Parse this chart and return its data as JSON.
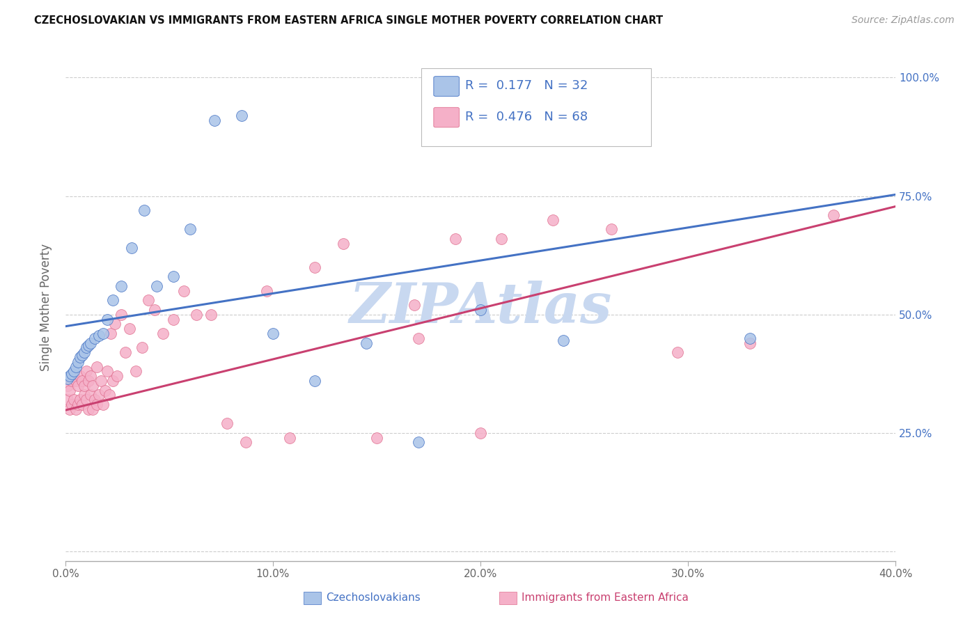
{
  "title": "CZECHOSLOVAKIAN VS IMMIGRANTS FROM EASTERN AFRICA SINGLE MOTHER POVERTY CORRELATION CHART",
  "source": "Source: ZipAtlas.com",
  "ylabel": "Single Mother Poverty",
  "ytick_vals": [
    0.0,
    0.25,
    0.5,
    0.75,
    1.0
  ],
  "ytick_labels": [
    "",
    "25.0%",
    "50.0%",
    "75.0%",
    "100.0%"
  ],
  "xtick_vals": [
    0.0,
    0.1,
    0.2,
    0.3,
    0.4
  ],
  "xtick_labels": [
    "0.0%",
    "10.0%",
    "20.0%",
    "30.0%",
    "40.0%"
  ],
  "line1_color": "#4472C4",
  "line2_color": "#C94070",
  "scatter1_color": "#aac4e8",
  "scatter2_color": "#f5b0c8",
  "scatter1_edge": "#4472C4",
  "scatter2_edge": "#e07090",
  "watermark": "ZIPAtlas",
  "watermark_color": "#c8d8f0",
  "xlim": [
    0.0,
    0.4
  ],
  "ylim": [
    -0.02,
    1.05
  ],
  "legend1_text": "R =  0.177   N = 32",
  "legend2_text": "R =  0.476   N = 68",
  "bottom_label1": "Czechoslovakians",
  "bottom_label2": "Immigrants from Eastern Africa",
  "blue_line_y0": 0.475,
  "blue_line_y1": 0.753,
  "pink_line_y0": 0.298,
  "pink_line_y1": 0.728,
  "blue_x": [
    0.001,
    0.002,
    0.003,
    0.004,
    0.005,
    0.006,
    0.007,
    0.008,
    0.009,
    0.01,
    0.011,
    0.012,
    0.014,
    0.016,
    0.018,
    0.02,
    0.023,
    0.027,
    0.032,
    0.038,
    0.044,
    0.052,
    0.06,
    0.072,
    0.085,
    0.1,
    0.12,
    0.145,
    0.17,
    0.2,
    0.24,
    0.33
  ],
  "blue_y": [
    0.365,
    0.37,
    0.375,
    0.38,
    0.39,
    0.4,
    0.41,
    0.415,
    0.42,
    0.43,
    0.435,
    0.44,
    0.45,
    0.455,
    0.46,
    0.49,
    0.53,
    0.56,
    0.64,
    0.72,
    0.56,
    0.58,
    0.68,
    0.91,
    0.92,
    0.46,
    0.36,
    0.44,
    0.23,
    0.51,
    0.445,
    0.45
  ],
  "pink_x": [
    0.001,
    0.001,
    0.002,
    0.002,
    0.003,
    0.003,
    0.004,
    0.004,
    0.005,
    0.005,
    0.006,
    0.006,
    0.007,
    0.007,
    0.008,
    0.008,
    0.009,
    0.009,
    0.01,
    0.01,
    0.011,
    0.011,
    0.012,
    0.012,
    0.013,
    0.013,
    0.014,
    0.015,
    0.015,
    0.016,
    0.017,
    0.018,
    0.019,
    0.02,
    0.021,
    0.022,
    0.023,
    0.024,
    0.025,
    0.027,
    0.029,
    0.031,
    0.034,
    0.037,
    0.04,
    0.043,
    0.047,
    0.052,
    0.057,
    0.063,
    0.07,
    0.078,
    0.087,
    0.097,
    0.108,
    0.12,
    0.134,
    0.15,
    0.168,
    0.188,
    0.21,
    0.235,
    0.263,
    0.295,
    0.33,
    0.37,
    0.17,
    0.2
  ],
  "pink_y": [
    0.32,
    0.35,
    0.3,
    0.34,
    0.31,
    0.36,
    0.32,
    0.37,
    0.3,
    0.36,
    0.31,
    0.35,
    0.32,
    0.37,
    0.31,
    0.36,
    0.33,
    0.35,
    0.32,
    0.38,
    0.3,
    0.36,
    0.33,
    0.37,
    0.3,
    0.35,
    0.32,
    0.31,
    0.39,
    0.33,
    0.36,
    0.31,
    0.34,
    0.38,
    0.33,
    0.46,
    0.36,
    0.48,
    0.37,
    0.5,
    0.42,
    0.47,
    0.38,
    0.43,
    0.53,
    0.51,
    0.46,
    0.49,
    0.55,
    0.5,
    0.5,
    0.27,
    0.23,
    0.55,
    0.24,
    0.6,
    0.65,
    0.24,
    0.52,
    0.66,
    0.66,
    0.7,
    0.68,
    0.42,
    0.44,
    0.71,
    0.45,
    0.25
  ]
}
